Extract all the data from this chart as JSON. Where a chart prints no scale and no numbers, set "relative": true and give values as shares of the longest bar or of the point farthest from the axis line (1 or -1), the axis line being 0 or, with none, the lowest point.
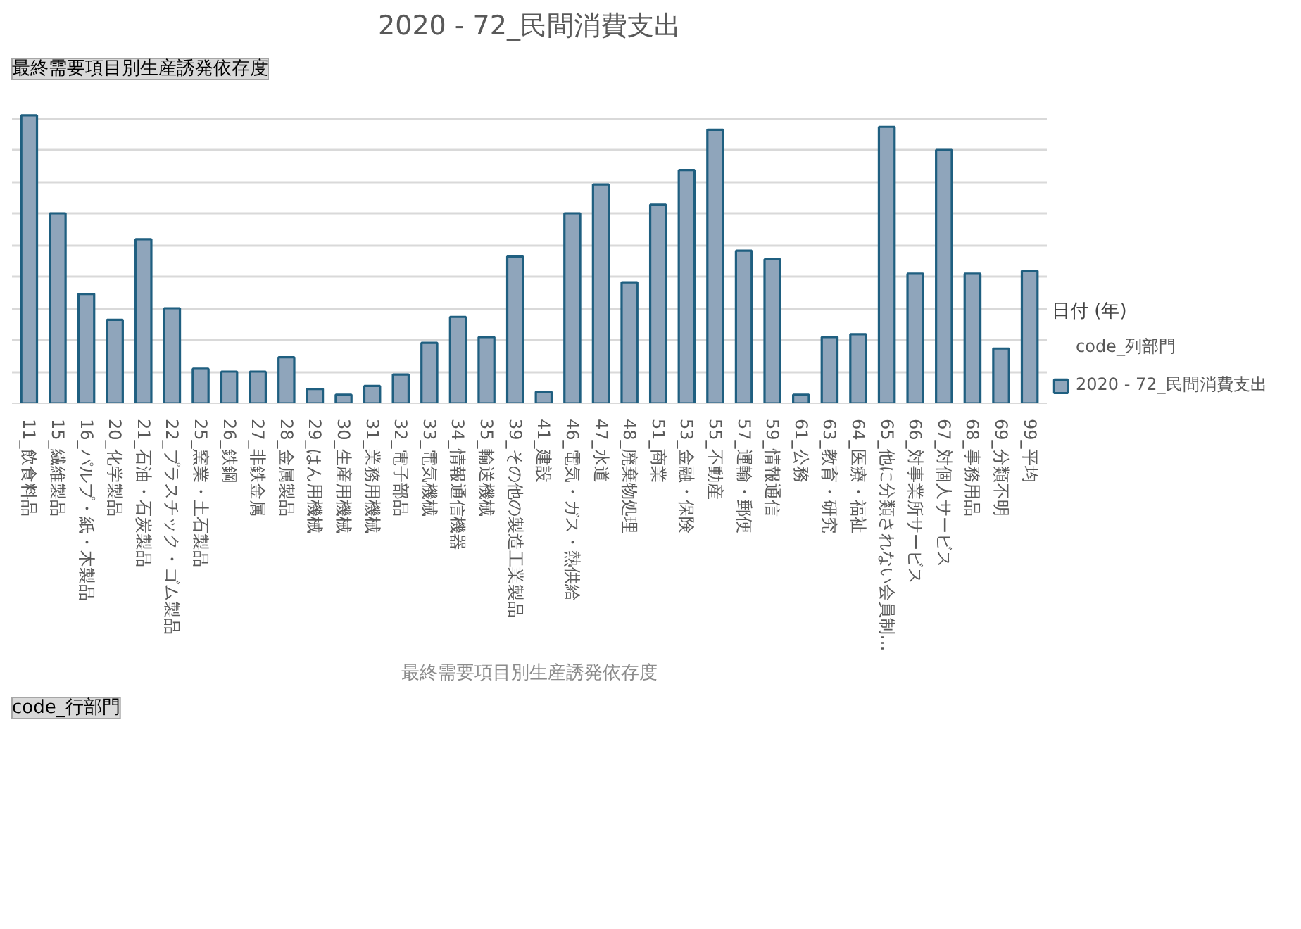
{
  "chart_data": {
    "type": "bar",
    "title": "2020 - 72_民間消費支出",
    "xlabel": "最終需要項目別生産誘発依存度",
    "legend_title": "日付 (年)",
    "annotations": [
      "最終需要項目別生産誘発依存度",
      "code_行部門",
      "code_列部門"
    ],
    "relative": true,
    "grid": "y",
    "legend": "right",
    "categories": [
      "11_飲食料品",
      "15_繊維製品",
      "16_パルプ・紙・木製品",
      "20_化学製品",
      "21_石油・石炭製品",
      "22_プラスチック・ゴム製品",
      "25_窯業・土石製品",
      "26_鉄鋼",
      "27_非鉄金属",
      "28_金属製品",
      "29_はん用機械",
      "30_生産用機械",
      "31_業務用機械",
      "32_電子部品",
      "33_電気機械",
      "34_情報通信機器",
      "35_輸送機械",
      "39_その他の製造工業製品",
      "41_建設",
      "46_電気・ガス・熱供給",
      "47_水道",
      "48_廃棄物処理",
      "51_商業",
      "53_金融・保険",
      "55_不動産",
      "57_運輸・郵便",
      "59_情報通信",
      "61_公務",
      "63_教育・研究",
      "64_医療・福祉",
      "65_他に分類されない会員制…",
      "66_対事業所サービス",
      "67_対個人サービス",
      "68_事務用品",
      "69_分類不明",
      "99_平均"
    ],
    "series": [
      {
        "name": "2020 - 72_民間消費支出",
        "color": "#8fa5bb",
        "values": [
          1.0,
          0.66,
          0.38,
          0.29,
          0.57,
          0.33,
          0.12,
          0.11,
          0.11,
          0.16,
          0.05,
          0.03,
          0.06,
          0.1,
          0.21,
          0.3,
          0.23,
          0.51,
          0.04,
          0.66,
          0.76,
          0.42,
          0.69,
          0.81,
          0.95,
          0.53,
          0.5,
          0.03,
          0.23,
          0.24,
          0.96,
          0.45,
          0.88,
          0.45,
          0.19,
          0.46
        ]
      }
    ]
  }
}
